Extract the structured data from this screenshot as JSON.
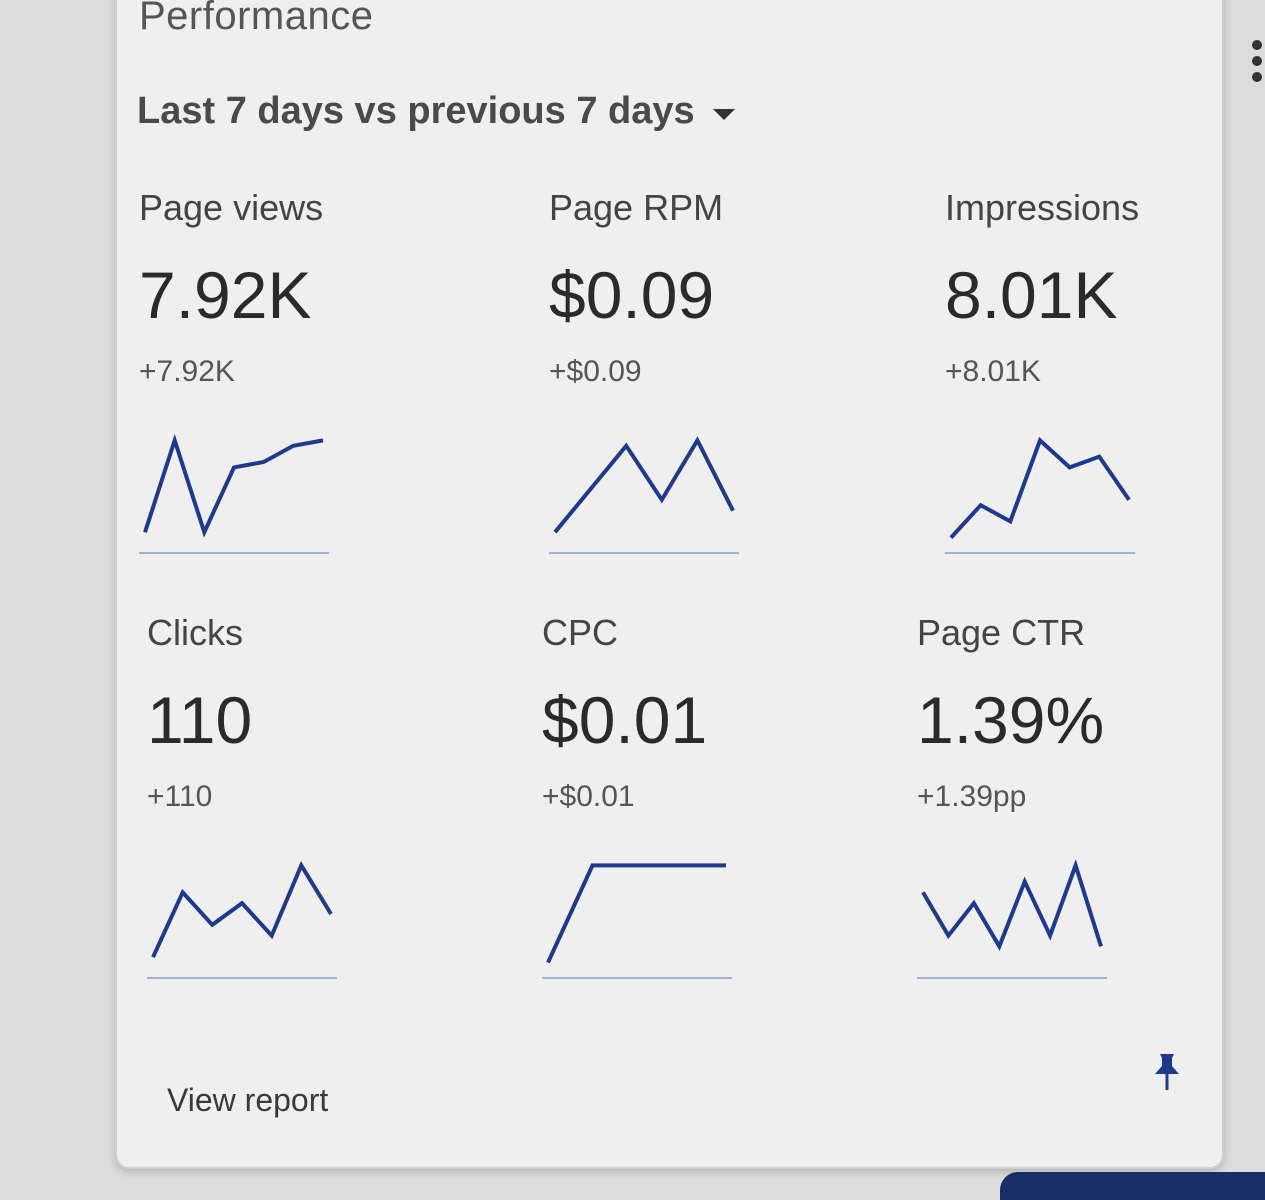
{
  "card": {
    "title": "Performance",
    "range_label": "Last 7 days vs previous 7 days",
    "view_report": "View report"
  },
  "colors": {
    "line": "#1f3a8a",
    "baseline": "#9fb3d8"
  },
  "metrics": [
    {
      "label": "Page views",
      "value": "7.92K",
      "delta": "+7.92K",
      "trend": [
        0.1,
        0.95,
        0.1,
        0.7,
        0.75,
        0.9,
        0.95
      ]
    },
    {
      "label": "Page RPM",
      "value": "$0.09",
      "delta": "+$0.09",
      "trend": [
        0.1,
        0.5,
        0.9,
        0.4,
        0.95,
        0.3
      ]
    },
    {
      "label": "Impressions",
      "value": "8.01K",
      "delta": "+8.01K",
      "trend": [
        0.05,
        0.35,
        0.2,
        0.95,
        0.7,
        0.8,
        0.4
      ]
    },
    {
      "label": "Clicks",
      "value": "110",
      "delta": "+110",
      "trend": [
        0.1,
        0.7,
        0.4,
        0.6,
        0.3,
        0.95,
        0.5
      ]
    },
    {
      "label": "CPC",
      "value": "$0.01",
      "delta": "+$0.01",
      "trend": [
        0.05,
        0.95,
        0.95,
        0.95,
        0.95
      ]
    },
    {
      "label": "Page CTR",
      "value": "1.39%",
      "delta": "+1.39pp",
      "trend": [
        0.7,
        0.3,
        0.6,
        0.2,
        0.8,
        0.3,
        0.95,
        0.2
      ]
    }
  ]
}
